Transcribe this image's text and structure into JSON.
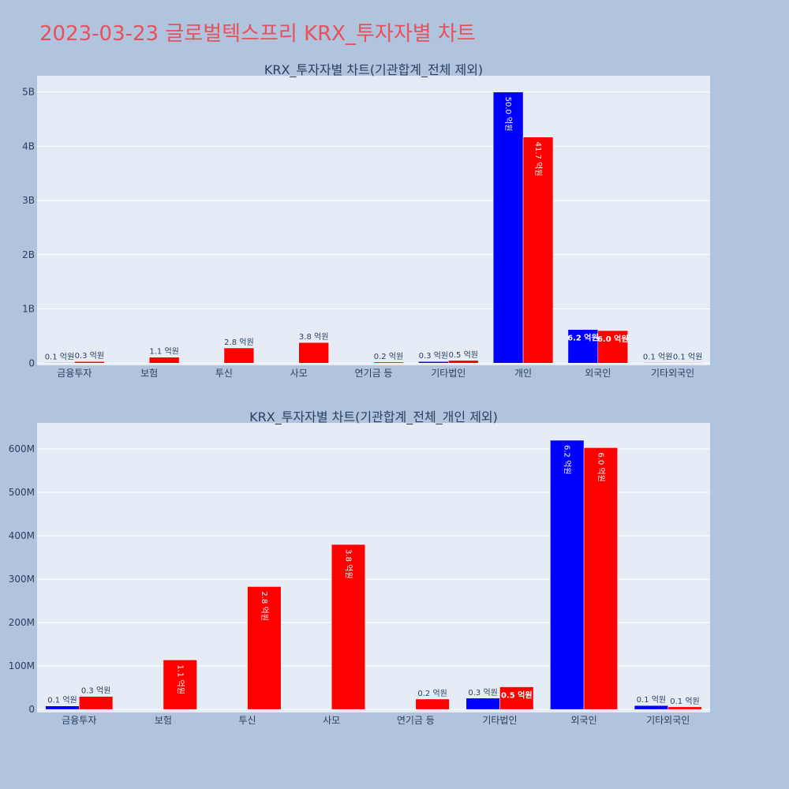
{
  "page": {
    "title": "2023-03-23 글로벌텍스프리 KRX_투자자별 차트"
  },
  "colors": {
    "series_a": "#0000ff",
    "series_b": "#ff0000"
  },
  "chart_data": [
    {
      "type": "bar",
      "title": "KRX_투자자별 차트(기관합계_전체 제외)",
      "categories": [
        "금융투자",
        "보험",
        "투신",
        "사모",
        "연기금 등",
        "기타법인",
        "개인",
        "외국인",
        "기타외국인"
      ],
      "series": [
        {
          "values": [
            10000000,
            null,
            null,
            null,
            null,
            30000000,
            5000000000,
            620000000,
            10000000
          ],
          "labels": [
            "0.1 억원",
            "",
            "",
            "",
            "",
            "0.3 억원",
            "50.0 억원",
            "6.2 억원",
            "0.1 억원"
          ]
        },
        {
          "values": [
            30000000,
            110000000,
            280000000,
            380000000,
            20000000,
            50000000,
            4170000000,
            600000000,
            10000000
          ],
          "labels": [
            "0.3 억원",
            "1.1 억원",
            "2.8 억원",
            "3.8 억원",
            "0.2 억원",
            "0.5 억원",
            "41.7 억원",
            "6.0 억원",
            "0.1 억원"
          ]
        }
      ],
      "yticks": [
        0,
        1000000000,
        2000000000,
        3000000000,
        4000000000,
        5000000000
      ],
      "ytick_labels": [
        "0",
        "1B",
        "2B",
        "3B",
        "4B",
        "5B"
      ],
      "ylim": [
        -40000000,
        5300000000
      ],
      "grid": true,
      "legend": "none"
    },
    {
      "type": "bar",
      "title": "KRX_투자자별 차트(기관합계_전체_개인 제외)",
      "categories": [
        "금융투자",
        "보험",
        "투신",
        "사모",
        "연기금 등",
        "기타법인",
        "외국인",
        "기타외국인"
      ],
      "series": [
        {
          "values": [
            8000000,
            null,
            null,
            null,
            null,
            26000000,
            620000000,
            9000000
          ],
          "labels": [
            "0.1 억원",
            "",
            "",
            "",
            "",
            "0.3 억원",
            "6.2 억원",
            "0.1 억원"
          ]
        },
        {
          "values": [
            30000000,
            114000000,
            283000000,
            380000000,
            24000000,
            52000000,
            603000000,
            6000000
          ],
          "labels": [
            "0.3 억원",
            "1.1 억원",
            "2.8 억원",
            "3.8 억원",
            "0.2 억원",
            "0.5 억원",
            "6.0 억원",
            "0.1 억원"
          ]
        }
      ],
      "yticks": [
        0,
        100000000,
        200000000,
        300000000,
        400000000,
        500000000,
        600000000
      ],
      "ytick_labels": [
        "0",
        "100M",
        "200M",
        "300M",
        "400M",
        "500M",
        "600M"
      ],
      "ylim": [
        -7000000,
        660000000
      ],
      "grid": true,
      "legend": "none"
    }
  ]
}
